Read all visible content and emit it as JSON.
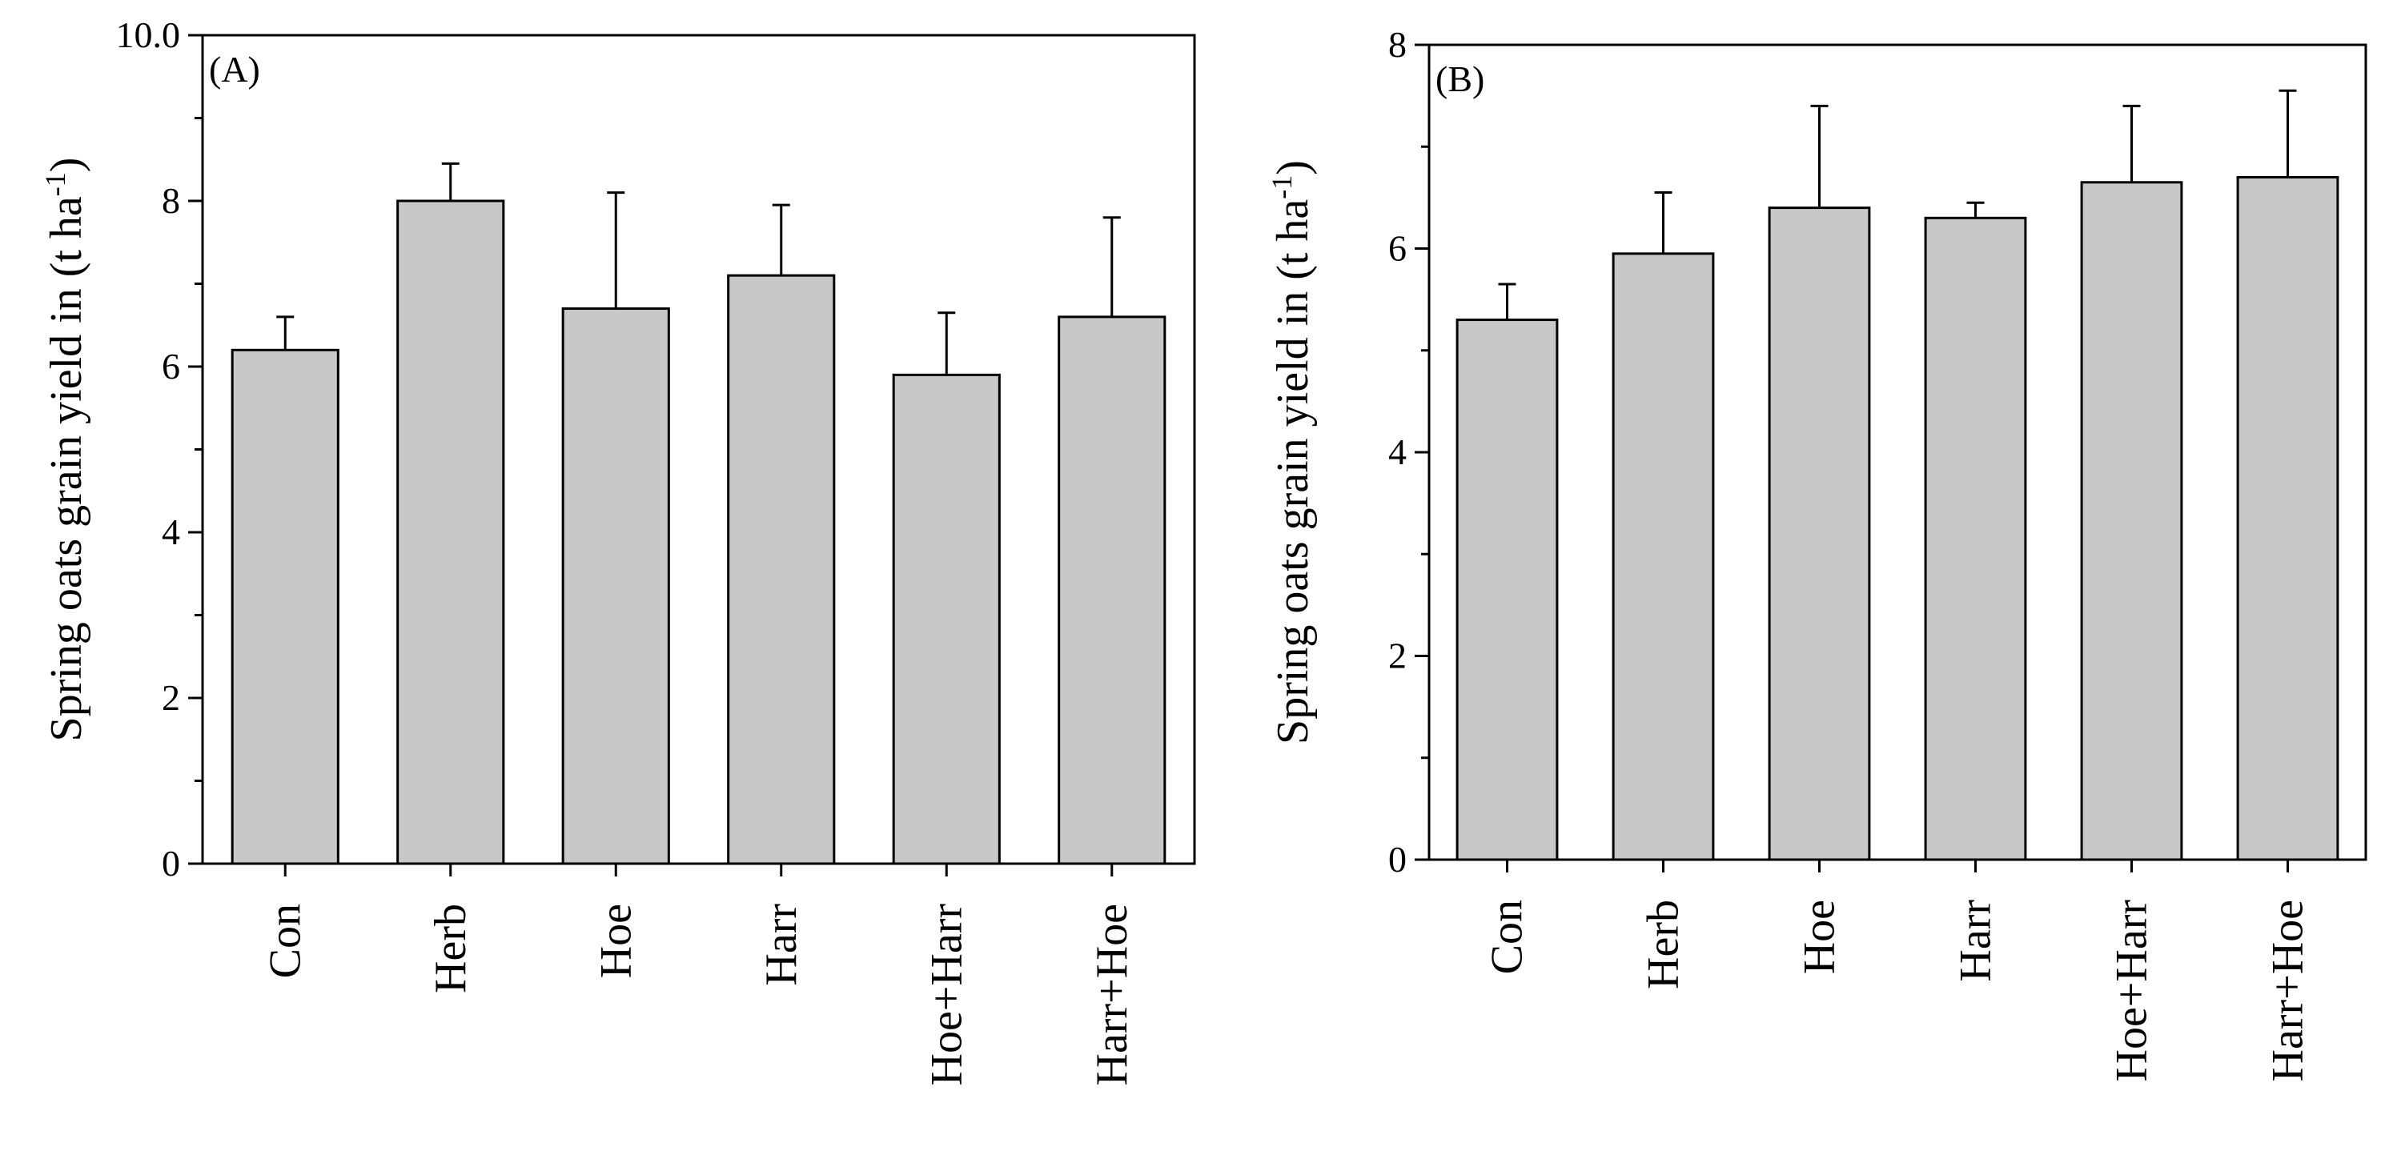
{
  "chart_data": [
    {
      "type": "bar",
      "panel_label": "(A)",
      "title": "",
      "xlabel": "",
      "ylabel": "Spring oats grain yield in (t ha-1)",
      "ylabel_base": "Spring oats grain yield in (t ha",
      "ylabel_exp": "-1",
      "ylabel_close": ")",
      "ylim": [
        0,
        10
      ],
      "yticks": [
        0,
        2,
        4,
        6,
        8,
        10
      ],
      "categories": [
        "Con",
        "Herb",
        "Hoe",
        "Harr",
        "Hoe+Harr",
        "Harr+Hoe"
      ],
      "values": [
        6.2,
        8.0,
        6.7,
        7.1,
        5.9,
        6.6
      ],
      "errors": [
        0.4,
        0.45,
        1.4,
        0.85,
        0.75,
        1.2
      ],
      "bar_color": "#c8c8c8",
      "grid": false
    },
    {
      "type": "bar",
      "panel_label": "(B)",
      "title": "",
      "xlabel": "",
      "ylabel": "Spring oats grain yield in (t ha-1)",
      "ylabel_base": "Spring oats grain yield in (t ha",
      "ylabel_exp": "-1",
      "ylabel_close": ")",
      "ylim": [
        0,
        8
      ],
      "yticks": [
        0,
        2,
        4,
        6,
        8
      ],
      "categories": [
        "Con",
        "Herb",
        "Hoe",
        "Harr",
        "Hoe+Harr",
        "Harr+Hoe"
      ],
      "values": [
        5.3,
        5.95,
        6.4,
        6.3,
        6.65,
        6.7
      ],
      "errors": [
        0.35,
        0.6,
        1.0,
        0.15,
        0.75,
        0.85
      ],
      "bar_color": "#c8c8c8",
      "grid": false
    }
  ]
}
